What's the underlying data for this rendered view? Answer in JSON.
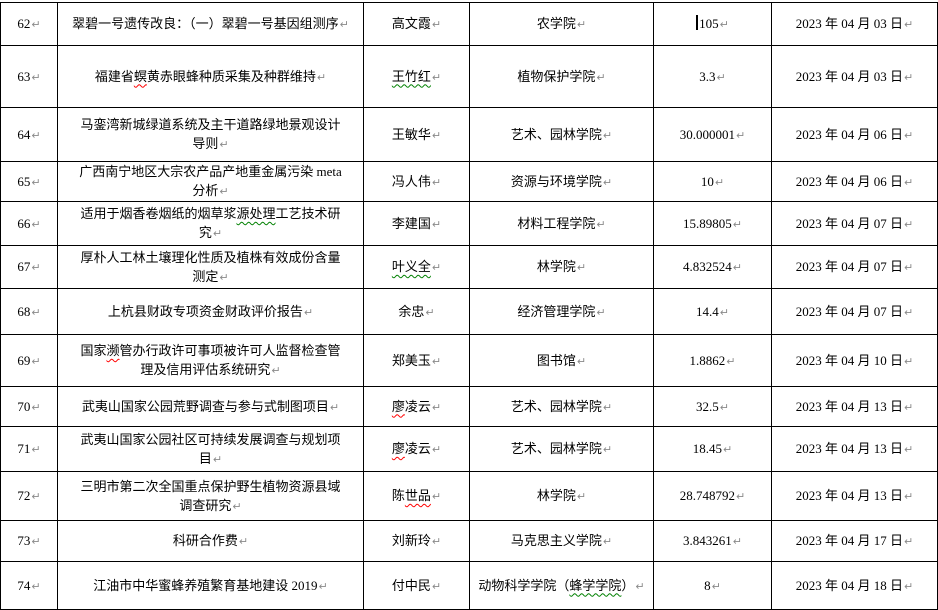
{
  "document": {
    "type": "word-table-page",
    "marks": {
      "pilcrow": "↵"
    },
    "colors": {
      "border": "#000000",
      "text": "#000000",
      "pilcrow_mark": "#8a8a8a",
      "spelling_error_underline": "#ff0000",
      "grammar_error_underline": "#008000"
    }
  },
  "table": {
    "columns": [
      "row-number",
      "project-title",
      "leader-name",
      "department",
      "amount",
      "date"
    ],
    "rows": [
      {
        "num": "62",
        "title": [
          {
            "t": "翠碧一号遗传改良：（一）翠碧一号基因组测序"
          }
        ],
        "name": [
          {
            "t": "高文霞"
          }
        ],
        "department": [
          {
            "t": "农学院"
          }
        ],
        "amount": [
          {
            "t": "105"
          }
        ],
        "amount_caret": true,
        "date": "2023 年 04 月 03 日"
      },
      {
        "num": "63",
        "title": [
          {
            "t": "福建省"
          },
          {
            "t": "螟",
            "u": "red"
          },
          {
            "t": "黄赤眼蜂种质采集及种群维持"
          }
        ],
        "name": [
          {
            "t": "王竹红",
            "u": "green"
          }
        ],
        "department": [
          {
            "t": "植物保护学院"
          }
        ],
        "amount": [
          {
            "t": "3.3"
          }
        ],
        "date": "2023 年 04 月 03 日"
      },
      {
        "num": "64",
        "title": [
          {
            "t": "马銮湾新城绿道系统及主干道路绿地景观设计\n导则"
          }
        ],
        "name": [
          {
            "t": "王敏华"
          }
        ],
        "department": [
          {
            "t": "艺术、园林学院"
          }
        ],
        "amount": [
          {
            "t": "30.000001"
          }
        ],
        "date": "2023 年 04 月 06 日"
      },
      {
        "num": "65",
        "title": [
          {
            "t": "广西南宁地区大宗农产品产地重金属污染 meta\n分析"
          }
        ],
        "name": [
          {
            "t": "冯人伟"
          }
        ],
        "department": [
          {
            "t": "资源与环境学院"
          }
        ],
        "amount": [
          {
            "t": "10"
          }
        ],
        "date": "2023 年 04 月 06 日"
      },
      {
        "num": "66",
        "title": [
          {
            "t": "适用于烟香卷烟纸的烟草浆"
          },
          {
            "t": "源处理",
            "u": "green"
          },
          {
            "t": "工艺技术研\n究"
          }
        ],
        "name": [
          {
            "t": "李建国"
          }
        ],
        "department": [
          {
            "t": "材料工程学院"
          }
        ],
        "amount": [
          {
            "t": "15.89805"
          }
        ],
        "date": "2023 年 04 月 07 日"
      },
      {
        "num": "67",
        "title": [
          {
            "t": "厚朴人工林土壤理化性质及植株有效成份含量\n测定"
          }
        ],
        "name": [
          {
            "t": "叶义全",
            "u": "green"
          }
        ],
        "department": [
          {
            "t": "林学院"
          }
        ],
        "amount": [
          {
            "t": "4.832524"
          }
        ],
        "date": "2023 年 04 月 07 日"
      },
      {
        "num": "68",
        "title": [
          {
            "t": "上杭县财政专项资金财政评价报告"
          }
        ],
        "name": [
          {
            "t": "余忠"
          }
        ],
        "department": [
          {
            "t": "经济管理学院"
          }
        ],
        "amount": [
          {
            "t": "14.4"
          }
        ],
        "date": "2023 年 04 月 07 日"
      },
      {
        "num": "69",
        "title": [
          {
            "t": "国家"
          },
          {
            "t": "濒",
            "u": "red"
          },
          {
            "t": "管办行政许可事项被许可人监督检查管\n理及信用评估系统研究"
          }
        ],
        "name": [
          {
            "t": "郑美玉"
          }
        ],
        "department": [
          {
            "t": "图书馆"
          }
        ],
        "amount": [
          {
            "t": "1.8862"
          }
        ],
        "date": "2023 年 04 月 10 日"
      },
      {
        "num": "70",
        "title": [
          {
            "t": "武夷山国家公园荒野调查与参与式制图项目"
          }
        ],
        "name": [
          {
            "t": "廖",
            "u": "red"
          },
          {
            "t": "凌云"
          }
        ],
        "department": [
          {
            "t": "艺术、园林学院"
          }
        ],
        "amount": [
          {
            "t": "32.5"
          }
        ],
        "date": "2023 年 04 月 13 日"
      },
      {
        "num": "71",
        "title": [
          {
            "t": "武夷山国家公园社区可持续发展调查与规划项\n目"
          }
        ],
        "name": [
          {
            "t": "廖",
            "u": "red"
          },
          {
            "t": "凌云"
          }
        ],
        "department": [
          {
            "t": "艺术、园林学院"
          }
        ],
        "amount": [
          {
            "t": "18.45"
          }
        ],
        "date": "2023 年 04 月 13 日"
      },
      {
        "num": "72",
        "title": [
          {
            "t": "三明市第二次全国重点保护野生植物资源县域\n调查研究"
          }
        ],
        "name": [
          {
            "t": "陈"
          },
          {
            "t": "世品",
            "u": "red"
          }
        ],
        "department": [
          {
            "t": "林学院"
          }
        ],
        "amount": [
          {
            "t": "28.748792"
          }
        ],
        "date": "2023 年 04 月 13 日"
      },
      {
        "num": "73",
        "title": [
          {
            "t": "科研合作费"
          }
        ],
        "name": [
          {
            "t": "刘新玲"
          }
        ],
        "department": [
          {
            "t": "马克思主义学院"
          }
        ],
        "amount": [
          {
            "t": "3.843261"
          }
        ],
        "date": "2023 年 04 月 17 日"
      },
      {
        "num": "74",
        "title": [
          {
            "t": "江油市中华蜜蜂养殖繁育基地建设 2019"
          }
        ],
        "name": [
          {
            "t": "付中民"
          }
        ],
        "department": [
          {
            "t": "动物科学学院（"
          },
          {
            "t": "蜂学学院",
            "u": "green"
          },
          {
            "t": "）"
          }
        ],
        "amount": [
          {
            "t": "8"
          }
        ],
        "date": "2023 年 04 月 18 日"
      }
    ]
  }
}
